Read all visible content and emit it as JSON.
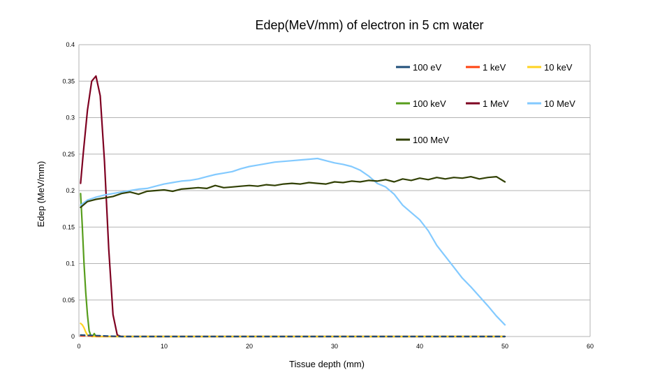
{
  "chart_data": {
    "type": "line",
    "title": "Edep(MeV/mm) of electron in 5 cm water",
    "xlabel": "Tissue depth (mm)",
    "ylabel": "Edep (MeV/mm)",
    "xlim": [
      0,
      60
    ],
    "ylim": [
      0,
      0.4
    ],
    "x_ticks": [
      "0",
      "10",
      "20",
      "30",
      "40",
      "50",
      "60"
    ],
    "y_ticks": [
      "0",
      "0.05",
      "0.1",
      "0.15",
      "0.2",
      "0.25",
      "0.3",
      "0.35",
      "0.4"
    ],
    "grid": "horizontal",
    "legend_position": "top-right",
    "series": [
      {
        "name": "100 eV",
        "color": "#1f4e79",
        "dashed": true,
        "x": [
          0.2,
          5,
          10,
          20,
          30,
          40,
          50
        ],
        "y": [
          0.002,
          0.0,
          0.0,
          0.0,
          0.0,
          0.0,
          0.0
        ]
      },
      {
        "name": "1 keV",
        "color": "#ff420e",
        "dashed": true,
        "x": [
          0.2,
          5,
          10,
          20,
          30,
          40,
          50
        ],
        "y": [
          0.001,
          0.0,
          0.0,
          0.0,
          0.0,
          0.0,
          0.0
        ]
      },
      {
        "name": "10 keV",
        "color": "#ffd320",
        "dashed": false,
        "x": [
          0.2,
          0.4,
          0.6,
          0.8,
          1.0,
          1.5,
          2.0,
          3.0,
          5.0,
          10,
          20,
          30,
          40,
          50
        ],
        "y": [
          0.018,
          0.016,
          0.012,
          0.006,
          0.002,
          0.0,
          0.0,
          0.0,
          0.0,
          0.0,
          0.0,
          0.0,
          0.0,
          0.0
        ]
      },
      {
        "name": "100 keV",
        "color": "#579d1c",
        "dashed": false,
        "x": [
          0.2,
          0.4,
          0.6,
          0.8,
          1.0,
          1.2,
          1.4,
          1.6,
          1.8,
          2.0,
          3.0,
          5.0,
          10,
          20,
          30,
          40,
          50
        ],
        "y": [
          0.196,
          0.15,
          0.1,
          0.06,
          0.03,
          0.008,
          0.001,
          0.0,
          0.004,
          0.0,
          0.0,
          0.0,
          0.0,
          0.0,
          0.0,
          0.0,
          0.0
        ]
      },
      {
        "name": "1 MeV",
        "color": "#7e0021",
        "dashed": false,
        "x": [
          0.2,
          0.5,
          1.0,
          1.5,
          2.0,
          2.5,
          3.0,
          3.5,
          4.0,
          4.5,
          5.0,
          7.0,
          10,
          15,
          20,
          30,
          40,
          50
        ],
        "y": [
          0.21,
          0.25,
          0.31,
          0.35,
          0.357,
          0.33,
          0.24,
          0.12,
          0.03,
          0.002,
          0.0,
          0.0,
          0.0,
          0.0,
          0.0,
          0.0,
          0.0,
          0.0
        ]
      },
      {
        "name": "10 MeV",
        "color": "#83caff",
        "dashed": false,
        "x": [
          0.2,
          1,
          2,
          3,
          4,
          5,
          6,
          7,
          8,
          9,
          10,
          11,
          12,
          13,
          14,
          15,
          16,
          17,
          18,
          19,
          20,
          21,
          22,
          23,
          24,
          25,
          26,
          27,
          28,
          29,
          30,
          31,
          32,
          33,
          34,
          35,
          36,
          37,
          38,
          39,
          40,
          41,
          42,
          43,
          44,
          45,
          46,
          47,
          48,
          49,
          50
        ],
        "y": [
          0.18,
          0.187,
          0.191,
          0.194,
          0.196,
          0.198,
          0.2,
          0.202,
          0.203,
          0.206,
          0.209,
          0.211,
          0.213,
          0.214,
          0.216,
          0.219,
          0.222,
          0.224,
          0.226,
          0.23,
          0.233,
          0.235,
          0.237,
          0.239,
          0.24,
          0.241,
          0.242,
          0.243,
          0.244,
          0.241,
          0.238,
          0.236,
          0.233,
          0.228,
          0.22,
          0.21,
          0.205,
          0.195,
          0.18,
          0.17,
          0.16,
          0.145,
          0.125,
          0.11,
          0.095,
          0.08,
          0.068,
          0.055,
          0.042,
          0.028,
          0.016
        ]
      },
      {
        "name": "100 MeV",
        "color": "#314004",
        "dashed": false,
        "x": [
          0.2,
          1,
          2,
          3,
          4,
          5,
          6,
          7,
          8,
          9,
          10,
          11,
          12,
          13,
          14,
          15,
          16,
          17,
          18,
          19,
          20,
          21,
          22,
          23,
          24,
          25,
          26,
          27,
          28,
          29,
          30,
          31,
          32,
          33,
          34,
          35,
          36,
          37,
          38,
          39,
          40,
          41,
          42,
          43,
          44,
          45,
          46,
          47,
          48,
          49,
          50
        ],
        "y": [
          0.177,
          0.185,
          0.188,
          0.19,
          0.192,
          0.196,
          0.198,
          0.195,
          0.199,
          0.2,
          0.201,
          0.199,
          0.202,
          0.203,
          0.204,
          0.203,
          0.207,
          0.204,
          0.205,
          0.206,
          0.207,
          0.206,
          0.208,
          0.207,
          0.209,
          0.21,
          0.209,
          0.211,
          0.21,
          0.209,
          0.212,
          0.211,
          0.213,
          0.212,
          0.214,
          0.213,
          0.215,
          0.212,
          0.216,
          0.214,
          0.217,
          0.215,
          0.218,
          0.216,
          0.218,
          0.217,
          0.219,
          0.216,
          0.218,
          0.219,
          0.212
        ]
      }
    ]
  }
}
